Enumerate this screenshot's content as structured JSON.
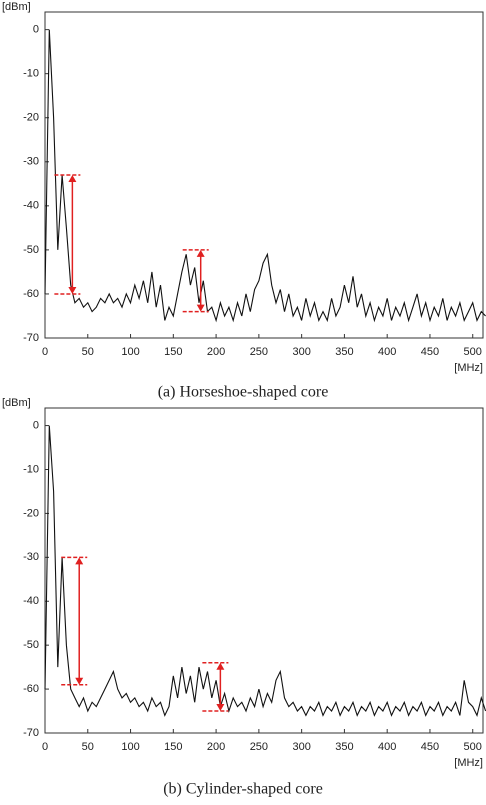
{
  "chart_data": [
    {
      "type": "line",
      "caption": "(a) Horseshoe-shaped core",
      "y_label": "[dBm]",
      "x_label": "[MHz]",
      "xlim": [
        0,
        512
      ],
      "ylim": [
        -70,
        4
      ],
      "xticks": [
        0,
        50,
        100,
        150,
        200,
        250,
        300,
        350,
        400,
        450,
        500
      ],
      "yticks": [
        0,
        -10,
        -20,
        -30,
        -40,
        -50,
        -60,
        -70
      ],
      "x": [
        0,
        5,
        10,
        15,
        20,
        25,
        30,
        35,
        40,
        45,
        50,
        55,
        60,
        65,
        70,
        75,
        80,
        85,
        90,
        95,
        100,
        105,
        110,
        115,
        120,
        125,
        130,
        135,
        140,
        145,
        150,
        155,
        160,
        165,
        170,
        175,
        180,
        185,
        190,
        195,
        200,
        205,
        210,
        215,
        220,
        225,
        230,
        235,
        240,
        245,
        250,
        255,
        260,
        265,
        270,
        275,
        280,
        285,
        290,
        295,
        300,
        305,
        310,
        315,
        320,
        325,
        330,
        335,
        340,
        345,
        350,
        355,
        360,
        365,
        370,
        375,
        380,
        385,
        390,
        395,
        400,
        405,
        410,
        415,
        420,
        425,
        430,
        435,
        440,
        445,
        450,
        455,
        460,
        465,
        470,
        475,
        480,
        485,
        490,
        495,
        500,
        505,
        510,
        515
      ],
      "series": [
        {
          "color": "#111111",
          "values": [
            -60,
            0,
            -20,
            -50,
            -33,
            -45,
            -58,
            -62,
            -61,
            -63,
            -62,
            -64,
            -63,
            -61,
            -62,
            -60,
            -62,
            -61,
            -63,
            -60,
            -62,
            -58,
            -61,
            -57,
            -62,
            -55,
            -63,
            -58,
            -66,
            -63,
            -65,
            -60,
            -55,
            -51,
            -58,
            -54,
            -62,
            -57,
            -64,
            -63,
            -66,
            -62,
            -65,
            -63,
            -66,
            -62,
            -65,
            -60,
            -64,
            -59,
            -57,
            -53,
            -51,
            -58,
            -62,
            -59,
            -64,
            -60,
            -65,
            -63,
            -66,
            -61,
            -65,
            -62,
            -66,
            -64,
            -66,
            -61,
            -65,
            -63,
            -58,
            -62,
            -56,
            -63,
            -60,
            -65,
            -62,
            -66,
            -63,
            -65,
            -61,
            -66,
            -63,
            -65,
            -62,
            -66,
            -63,
            -60,
            -65,
            -62,
            -66,
            -63,
            -65,
            -61,
            -66,
            -63,
            -65,
            -62,
            -66,
            -64,
            -62,
            -66,
            -64,
            -65
          ]
        }
      ],
      "arrows": [
        {
          "x": 32,
          "from": -60,
          "to": -33
        },
        {
          "x": 182,
          "from": -64,
          "to": -50
        }
      ]
    },
    {
      "type": "line",
      "caption": "(b) Cylinder-shaped core",
      "y_label": "[dBm]",
      "x_label": "[MHz]",
      "xlim": [
        0,
        512
      ],
      "ylim": [
        -70,
        4
      ],
      "xticks": [
        0,
        50,
        100,
        150,
        200,
        250,
        300,
        350,
        400,
        450,
        500
      ],
      "yticks": [
        0,
        -10,
        -20,
        -30,
        -40,
        -50,
        -60,
        -70
      ],
      "x": [
        0,
        5,
        10,
        15,
        20,
        25,
        30,
        35,
        40,
        45,
        50,
        55,
        60,
        65,
        70,
        75,
        80,
        85,
        90,
        95,
        100,
        105,
        110,
        115,
        120,
        125,
        130,
        135,
        140,
        145,
        150,
        155,
        160,
        165,
        170,
        175,
        180,
        185,
        190,
        195,
        200,
        205,
        210,
        215,
        220,
        225,
        230,
        235,
        240,
        245,
        250,
        255,
        260,
        265,
        270,
        275,
        280,
        285,
        290,
        295,
        300,
        305,
        310,
        315,
        320,
        325,
        330,
        335,
        340,
        345,
        350,
        355,
        360,
        365,
        370,
        375,
        380,
        385,
        390,
        395,
        400,
        405,
        410,
        415,
        420,
        425,
        430,
        435,
        440,
        445,
        450,
        455,
        460,
        465,
        470,
        475,
        480,
        485,
        490,
        495,
        500,
        505,
        510,
        515
      ],
      "series": [
        {
          "color": "#111111",
          "values": [
            -60,
            0,
            -15,
            -55,
            -30,
            -50,
            -60,
            -62,
            -64,
            -62,
            -65,
            -63,
            -64,
            -62,
            -60,
            -58,
            -56,
            -60,
            -62,
            -61,
            -63,
            -62,
            -64,
            -63,
            -65,
            -62,
            -64,
            -63,
            -66,
            -64,
            -57,
            -62,
            -55,
            -61,
            -57,
            -63,
            -55,
            -60,
            -56,
            -62,
            -58,
            -64,
            -61,
            -65,
            -62,
            -64,
            -63,
            -65,
            -62,
            -64,
            -60,
            -64,
            -61,
            -63,
            -58,
            -56,
            -62,
            -64,
            -63,
            -65,
            -64,
            -66,
            -64,
            -65,
            -63,
            -66,
            -64,
            -65,
            -63,
            -66,
            -64,
            -65,
            -63,
            -66,
            -64,
            -65,
            -63,
            -66,
            -64,
            -65,
            -63,
            -66,
            -64,
            -65,
            -63,
            -66,
            -64,
            -65,
            -63,
            -66,
            -64,
            -65,
            -63,
            -66,
            -64,
            -65,
            -63,
            -66,
            -58,
            -63,
            -64,
            -66,
            -62,
            -65
          ]
        }
      ],
      "arrows": [
        {
          "x": 40,
          "from": -59,
          "to": -30
        },
        {
          "x": 205,
          "from": -65,
          "to": -54
        }
      ]
    }
  ]
}
